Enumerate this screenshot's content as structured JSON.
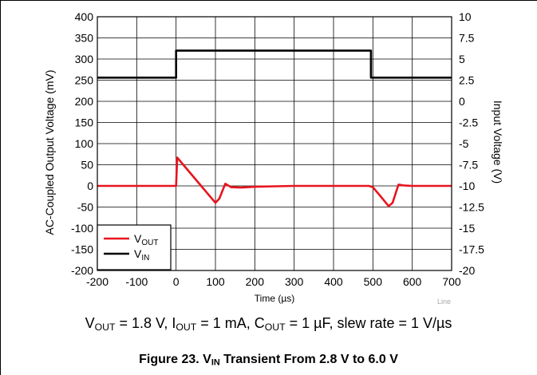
{
  "chart_data": {
    "type": "line",
    "title": "",
    "xlabel": "Time (µs)",
    "ylabel_left": "AC-Coupled Output Voltage (mV)",
    "ylabel_right": "Input Voltage (V)",
    "xlim": [
      -200,
      700
    ],
    "ylim_left": [
      -200,
      400
    ],
    "ylim_right": [
      -20,
      10
    ],
    "x_ticks": [
      -200,
      -100,
      0,
      100,
      200,
      300,
      400,
      500,
      600,
      700
    ],
    "y_ticks_left": [
      -200,
      -150,
      -100,
      -50,
      0,
      50,
      100,
      150,
      200,
      250,
      300,
      350,
      400
    ],
    "y_ticks_right": [
      "-20",
      "-17.5",
      "-15",
      "-12.5",
      "-10",
      "-7.5",
      "-5",
      "-2.5",
      "0",
      "2.5",
      "5",
      "7.5",
      "10"
    ],
    "grid": true,
    "legend_position": "bottom-left",
    "series": [
      {
        "name": "VOUT",
        "name_main": "V",
        "name_sub": "OUT",
        "axis": "left",
        "color": "#e8141d",
        "x": [
          -200,
          0,
          3,
          100,
          110,
          125,
          140,
          165,
          200,
          250,
          300,
          400,
          490,
          500,
          520,
          540,
          550,
          565,
          580,
          600,
          700
        ],
        "y": [
          0,
          0,
          67,
          -40,
          -30,
          5,
          -3,
          -4,
          -2,
          -1,
          0,
          0,
          0,
          -3,
          -25,
          -48,
          -40,
          3,
          1,
          0,
          0
        ]
      },
      {
        "name": "VIN",
        "name_main": "V",
        "name_sub": "IN",
        "axis": "right",
        "color": "#000000",
        "x": [
          -200,
          0,
          0,
          495,
          495,
          700
        ],
        "y": [
          2.8,
          2.8,
          6.0,
          6.0,
          2.8,
          2.8
        ]
      }
    ]
  },
  "watermark": "Line",
  "conditions": {
    "vout_main": "V",
    "vout_sub": "OUT",
    "vout_value": " = 1.8 V, ",
    "iout_main": "I",
    "iout_sub": "OUT",
    "iout_value": " = 1 mA, ",
    "cout_main": "C",
    "cout_sub": "OUT",
    "cout_value": " = 1 µF, slew rate = 1 V/µs"
  },
  "caption": {
    "prefix": "Figure 23. V",
    "sub": "IN",
    "suffix": " Transient From 2.8 V to 6.0 V"
  }
}
